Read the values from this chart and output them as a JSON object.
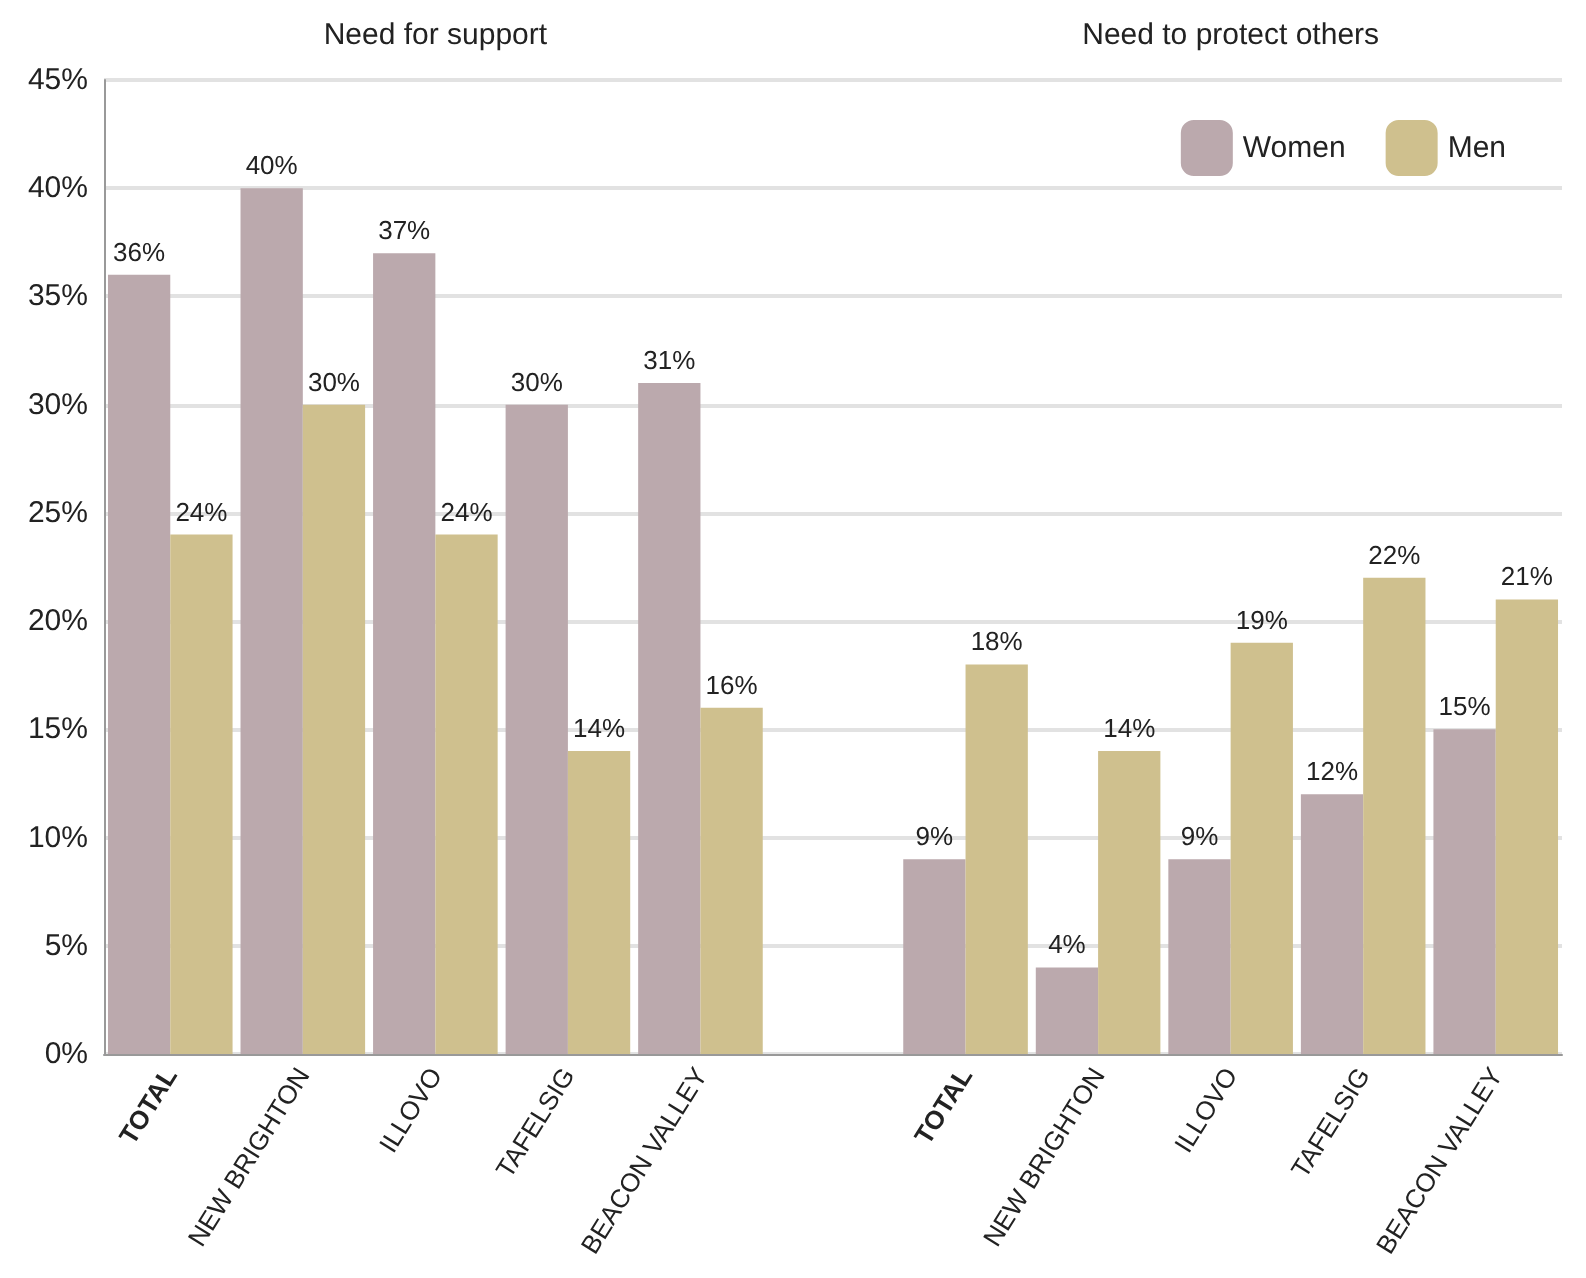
{
  "chart_data": {
    "type": "bar",
    "categories": [
      "TOTAL",
      "NEW BRIGHTON",
      "ILLOVO",
      "TAFELSIG",
      "BEACON VALLEY",
      null,
      "TOTAL",
      "NEW BRIGHTON",
      "ILLOVO",
      "TAFELSIG",
      "BEACON VALLEY"
    ],
    "series": [
      {
        "name": "Women",
        "color": "#bba9ad",
        "values": [
          36,
          40,
          37,
          30,
          31,
          null,
          9,
          4,
          9,
          12,
          15
        ],
        "value_labels": [
          "36%",
          "40%",
          "37%",
          "30%",
          "31%",
          null,
          "9%",
          "4%",
          "9%",
          "12%",
          "15%"
        ]
      },
      {
        "name": "Men",
        "color": "#cfc08e",
        "values": [
          24,
          30,
          24,
          14,
          16,
          null,
          18,
          14,
          19,
          22,
          21
        ],
        "value_labels": [
          "24%",
          "30%",
          "24%",
          "14%",
          "16%",
          null,
          "18%",
          "14%",
          "19%",
          "22%",
          "21%"
        ]
      }
    ],
    "ylim": [
      0,
      45
    ],
    "yticks": [
      {
        "value": 0,
        "label": "0%"
      },
      {
        "value": 5,
        "label": "5%"
      },
      {
        "value": 10,
        "label": "10%"
      },
      {
        "value": 15,
        "label": "15%"
      },
      {
        "value": 20,
        "label": "20%"
      },
      {
        "value": 25,
        "label": "25%"
      },
      {
        "value": 30,
        "label": "30%"
      },
      {
        "value": 35,
        "label": "35%"
      },
      {
        "value": 40,
        "label": "40%"
      },
      {
        "value": 45,
        "label": "45%"
      }
    ],
    "annotations": [
      "Need for support",
      "Need to protect others"
    ],
    "grid": "y",
    "legend": "top right"
  }
}
